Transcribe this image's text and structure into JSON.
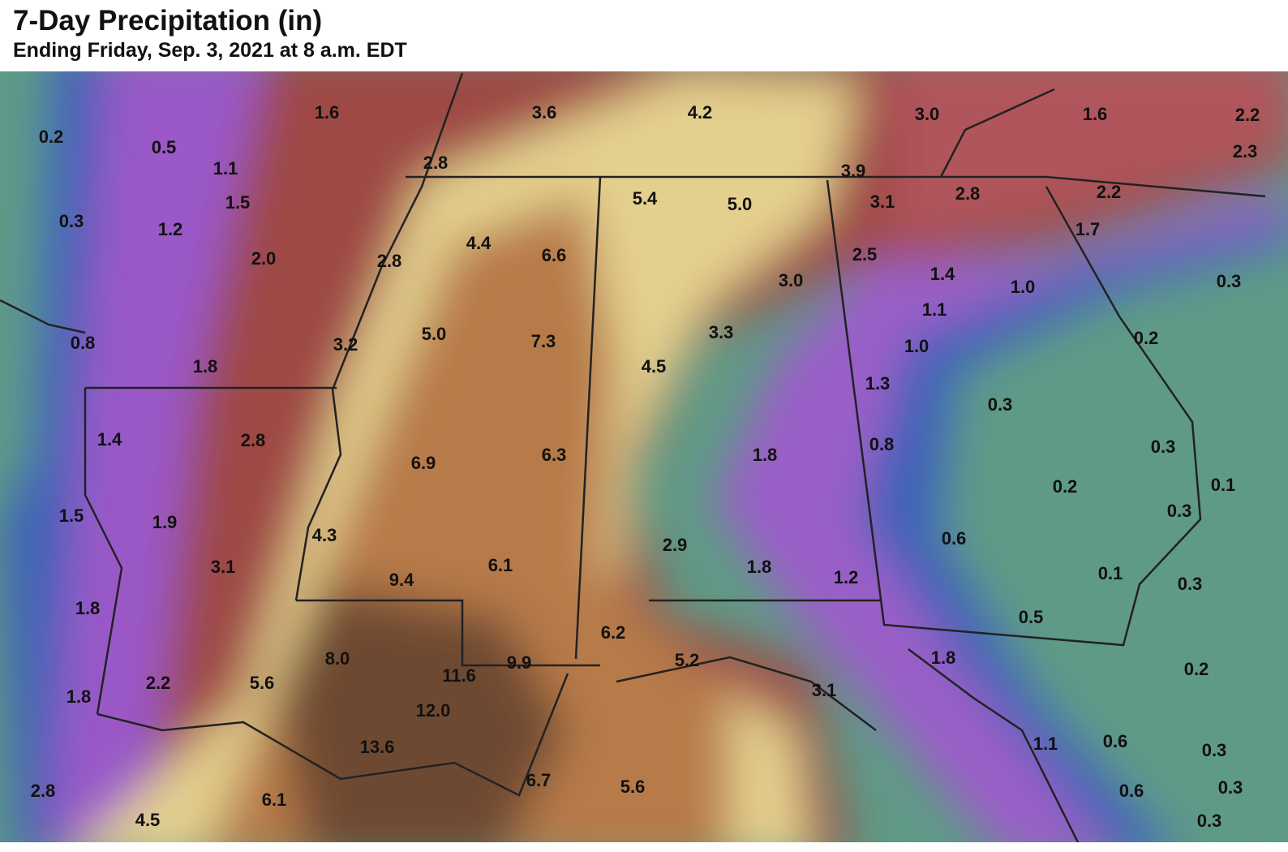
{
  "title": "7-Day Precipitation (in)",
  "subtitle": "Ending Friday, Sep. 3, 2021 at 8 a.m. EDT",
  "map": {
    "labels": [
      "1.6",
      "3.6",
      "4.2",
      "3.0",
      "1.6",
      "2.2",
      "0.2",
      "0.5",
      "2.3",
      "2.8",
      "1.1",
      "3.9",
      "5.4",
      "5.0",
      "3.1",
      "2.8",
      "2.2",
      "1.5",
      "0.3",
      "1.2",
      "1.7",
      "4.4",
      "6.6",
      "2.0",
      "2.8",
      "2.5",
      "1.4",
      "3.0",
      "1.0",
      "0.3",
      "1.1",
      "3.3",
      "5.0",
      "7.3",
      "0.8",
      "3.2",
      "1.0",
      "0.2",
      "4.5",
      "1.8",
      "1.3",
      "0.3",
      "1.4",
      "2.8",
      "6.9",
      "6.3",
      "1.8",
      "0.8",
      "0.3",
      "0.2",
      "0.1",
      "0.3",
      "1.5",
      "1.9",
      "4.3",
      "2.9",
      "0.6",
      "3.1",
      "6.1",
      "1.8",
      "1.2",
      "0.1",
      "0.3",
      "9.4",
      "1.8",
      "0.5",
      "6.2",
      "8.0",
      "9.9",
      "5.2",
      "1.8",
      "0.2",
      "2.2",
      "5.6",
      "11.6",
      "3.1",
      "1.8",
      "12.0",
      "13.6",
      "1.1",
      "0.6",
      "0.3",
      "2.8",
      "6.7",
      "5.6",
      "6.1",
      "0.6",
      "0.3",
      "4.5",
      "0.3"
    ]
  }
}
